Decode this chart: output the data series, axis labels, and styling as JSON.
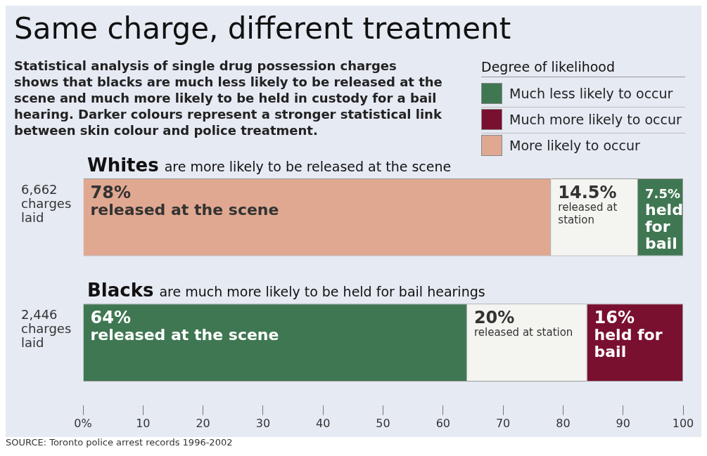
{
  "chart_data": {
    "type": "bar",
    "orientation": "horizontal",
    "stacked": true,
    "title": "Same charge, different treatment",
    "subtitle": "Statistical analysis of single drug possession charges shows that blacks are much less likely to be released at the scene and much more likely to be held in custody for a bail hearing. Darker colours represent a stronger statistical link between skin colour and police treatment.",
    "legend_title": "Degree of likelihood",
    "categories": [
      "Whites",
      "Blacks"
    ],
    "series": [
      {
        "name": "released at the scene",
        "colors": [
          "#e0a891",
          "#3f7752"
        ],
        "values": [
          78,
          64
        ],
        "value_labels": [
          "78%",
          "64%"
        ]
      },
      {
        "name": "released at station",
        "colors": [
          "#f4f4f0",
          "#f4f4f0"
        ],
        "values": [
          14.5,
          20
        ],
        "value_labels": [
          "14.5%",
          "20%"
        ]
      },
      {
        "name": "held for bail",
        "colors": [
          "#3f7752",
          "#7a1030"
        ],
        "values": [
          7.5,
          16
        ],
        "value_labels": [
          "7.5%",
          "16%"
        ]
      }
    ],
    "xlim": [
      0,
      100
    ],
    "xticks": [
      {
        "value": 0,
        "label": "0%"
      },
      10,
      20,
      30,
      40,
      50,
      60,
      70,
      80,
      90,
      100
    ],
    "grid": false,
    "legend": false,
    "annotations": [
      "are more likely to be released at the scene",
      "are much more likely to be held for bail hearings",
      "6,662 charges laid",
      "2,446 charges laid",
      "Much less likely to occur",
      "Much more likely to occur",
      "More likely to occur",
      "SOURCE: Toronto police arrest records 1996-2002"
    ]
  }
}
